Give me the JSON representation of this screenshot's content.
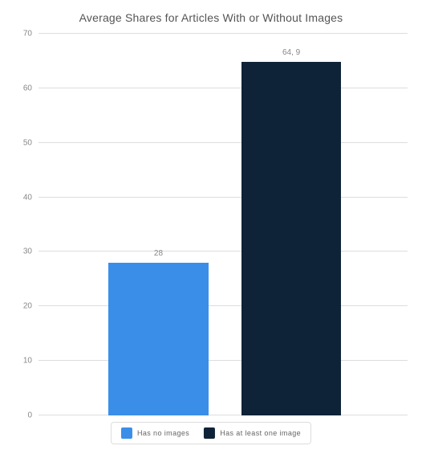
{
  "chart": {
    "type": "bar",
    "title": "Average Shares for Articles With or Without Images",
    "title_fontsize": 14,
    "title_color": "#555555",
    "background_color": "#ffffff",
    "grid_color": "#dddddd",
    "label_color": "#888888",
    "label_fontsize": 10,
    "ylim": [
      0,
      70
    ],
    "ytick_step": 10,
    "yticks": [
      0,
      10,
      20,
      30,
      40,
      50,
      60,
      70
    ],
    "series": [
      {
        "name": "Has no images",
        "value": 28,
        "display_value": "28",
        "color": "#3b8ee8"
      },
      {
        "name": "Has at least one image",
        "value": 64.9,
        "display_value": "64, 9",
        "color": "#0f2338"
      }
    ],
    "bar_positions_pct": [
      19,
      55
    ],
    "bar_width_pct": 27,
    "legend": {
      "border_color": "#dddddd",
      "fontsize": 9,
      "text_color": "#666666"
    }
  }
}
